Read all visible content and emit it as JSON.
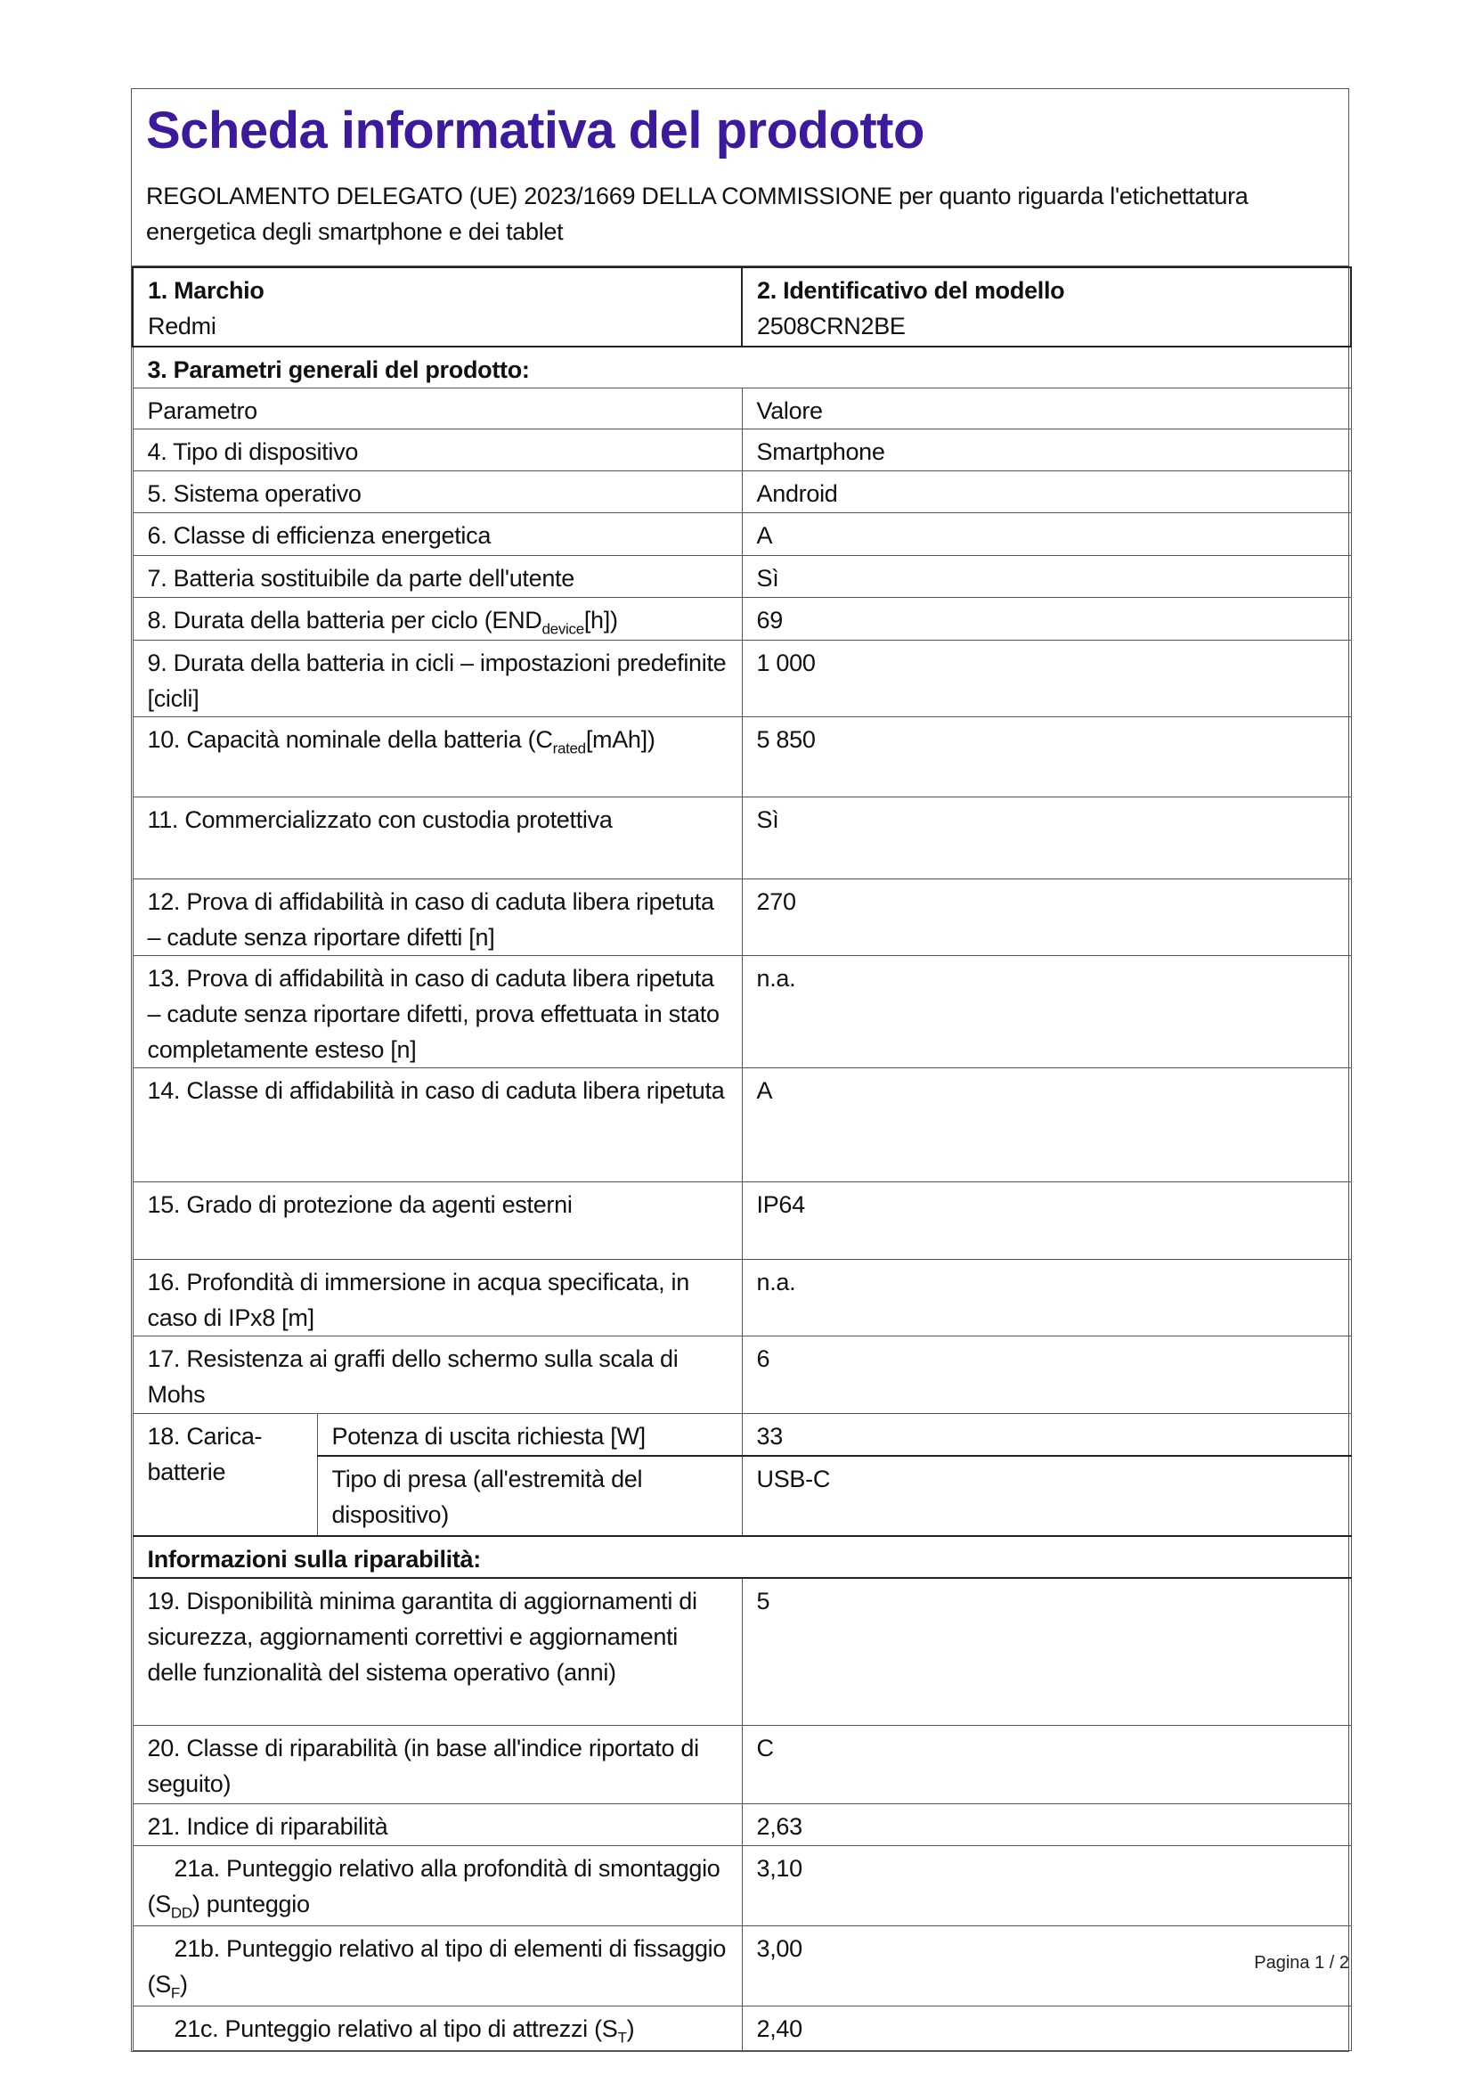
{
  "header": {
    "title": "Scheda informativa del prodotto",
    "subtitle": "REGOLAMENTO DELEGATO (UE) 2023/1669 DELLA COMMISSIONE per quanto riguarda l'etichettatura energetica degli smartphone e dei tablet"
  },
  "brand": {
    "label": "1. Marchio",
    "value": "Redmi"
  },
  "model": {
    "label": "2. Identificativo del modello",
    "value": "2508CRN2BE"
  },
  "section_general": "3. Parametri generali del prodotto:",
  "columns": {
    "param": "Parametro",
    "value": "Valore"
  },
  "rows": [
    {
      "label": "4. Tipo di dispositivo",
      "value": "Smartphone"
    },
    {
      "label": "5. Sistema operativo",
      "value": "Android"
    },
    {
      "label": "6. Classe di efficienza energetica",
      "value": "A"
    },
    {
      "label": "7. Batteria sostituibile da parte dell'utente",
      "value": "Sì"
    },
    {
      "label": "8. Durata della batteria per ciclo (END",
      "sub": "device",
      "label_end": "[h])",
      "value": "69"
    },
    {
      "label": "9. Durata della batteria in cicli – impostazioni predefinite [cicli]",
      "value": "1 000"
    },
    {
      "label": "10. Capacità nominale della batteria (C",
      "sub": "rated",
      "label_end": "[mAh])",
      "value": "5 850"
    },
    {
      "label": "11. Commercializzato con custodia protettiva",
      "value": "Sì"
    },
    {
      "label": "12. Prova di affidabilità in caso di caduta libera ripetuta – cadute senza riportare difetti [n]",
      "value": "270"
    },
    {
      "label": "13. Prova di affidabilità in caso di caduta libera ripetuta – cadute senza riportare difetti, prova effettuata in stato completamente esteso [n]",
      "value": "n.a."
    },
    {
      "label": "14. Classe di affidabilità in caso di caduta libera ripetuta",
      "value": "A"
    },
    {
      "label": "15. Grado di protezione da agenti esterni",
      "value": "IP64"
    },
    {
      "label": "16. Profondità di immersione in acqua specificata, in caso di IPx8 [m]",
      "value": "n.a."
    },
    {
      "label": "17. Resistenza ai graffi dello schermo sulla scala di Mohs",
      "value": "6"
    }
  ],
  "charger": {
    "label": "18. Carica-batterie",
    "items": [
      {
        "label": "Potenza di uscita richiesta [W]",
        "value": "33"
      },
      {
        "label": "Tipo di presa (all'estremità del dispositivo)",
        "value": "USB-C"
      }
    ]
  },
  "section_repair": "Informazioni sulla riparabilità:",
  "repair_rows": [
    {
      "label": "19. Disponibilità minima garantita di aggiornamenti di sicurezza, aggiornamenti correttivi e aggiornamenti delle funzionalità del sistema operativo (anni)",
      "value": "5"
    },
    {
      "label": "20. Classe di riparabilità (in base all'indice riportato di seguito)",
      "value": "C"
    },
    {
      "label": "21. Indice di riparabilità",
      "value": "2,63"
    },
    {
      "label": "21a. Punteggio relativo alla profondità di smontaggio (S",
      "sub": "DD",
      "label_end": ") punteggio",
      "value": "3,10",
      "indent": true
    },
    {
      "label": "21b. Punteggio relativo al tipo di elementi di fissaggio (S",
      "sub": "F",
      "label_end": ")",
      "value": "3,00",
      "indent": true
    },
    {
      "label": "21c. Punteggio relativo al tipo di attrezzi (S",
      "sub": "T",
      "label_end": ")",
      "value": "2,40",
      "indent": true
    }
  ],
  "footer": {
    "page": "Pagina 1 / 2"
  }
}
